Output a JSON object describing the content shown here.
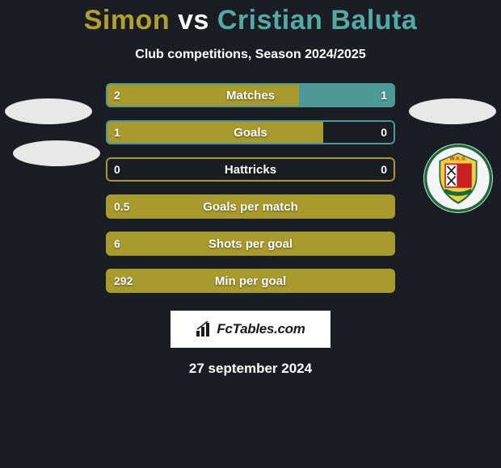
{
  "title": {
    "player1": "Simon",
    "vs": "vs",
    "player2": "Cristian Baluta",
    "player1_color": "#b0a034",
    "vs_color": "#ffffff",
    "player2_color": "#55a8a6"
  },
  "subtitle": "Club competitions, Season 2024/2025",
  "colors": {
    "left_fill": "#a99a2e",
    "right_fill": "#4e9995",
    "border_green": "#4e9995",
    "border_olive": "#a99a2e",
    "background": "#1a1e24"
  },
  "bars": [
    {
      "label": "Matches",
      "left_val": "2",
      "right_val": "1",
      "left_pct": 66.7,
      "right_pct": 33.3,
      "border": "green"
    },
    {
      "label": "Goals",
      "left_val": "1",
      "right_val": "0",
      "left_pct": 75,
      "right_pct": 0,
      "border": "green"
    },
    {
      "label": "Hattricks",
      "left_val": "0",
      "right_val": "0",
      "left_pct": 0,
      "right_pct": 0,
      "border": "olive"
    },
    {
      "label": "Goals per match",
      "left_val": "0.5",
      "right_val": "",
      "left_pct": 100,
      "right_pct": 0,
      "border": "olive"
    },
    {
      "label": "Shots per goal",
      "left_val": "6",
      "right_val": "",
      "left_pct": 100,
      "right_pct": 0,
      "border": "olive"
    },
    {
      "label": "Min per goal",
      "left_val": "292",
      "right_val": "",
      "left_pct": 100,
      "right_pct": 0,
      "border": "olive"
    }
  ],
  "footer": {
    "brand": "FcTables.com",
    "date": "27 september 2024"
  }
}
